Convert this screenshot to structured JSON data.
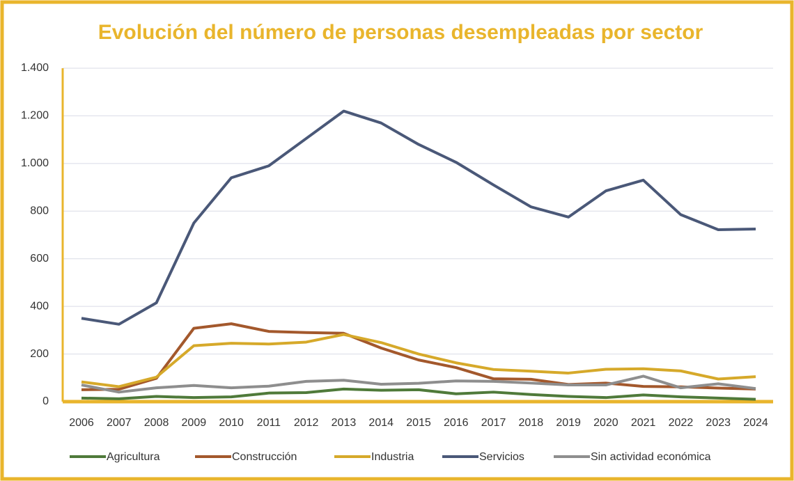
{
  "chart_data": {
    "type": "line",
    "title": "Evolución del número de personas desempleadas por sector",
    "categories": [
      "2006",
      "2007",
      "2008",
      "2009",
      "2010",
      "2011",
      "2012",
      "2013",
      "2014",
      "2015",
      "2016",
      "2017",
      "2018",
      "2019",
      "2020",
      "2021",
      "2022",
      "2023",
      "2024"
    ],
    "series": [
      {
        "name": "Agricultura",
        "color": "#4f7a3a",
        "values": [
          15,
          12,
          22,
          17,
          20,
          36,
          38,
          53,
          48,
          50,
          33,
          40,
          30,
          22,
          17,
          28,
          20,
          15,
          10
        ]
      },
      {
        "name": "Construcción",
        "color": "#a3582c",
        "values": [
          50,
          52,
          98,
          308,
          327,
          295,
          290,
          287,
          225,
          175,
          143,
          96,
          94,
          72,
          78,
          64,
          62,
          57,
          53
        ]
      },
      {
        "name": "Industria",
        "color": "#d6a92a",
        "values": [
          83,
          63,
          103,
          235,
          245,
          242,
          250,
          282,
          248,
          200,
          163,
          135,
          128,
          120,
          136,
          138,
          129,
          95,
          105
        ]
      },
      {
        "name": "Servicios",
        "color": "#4a5878",
        "values": [
          350,
          325,
          415,
          750,
          940,
          990,
          1105,
          1220,
          1170,
          1080,
          1005,
          910,
          818,
          775,
          885,
          930,
          785,
          722,
          725
        ]
      },
      {
        "name": "Sin actividad económica",
        "color": "#8e8e8e",
        "values": [
          70,
          40,
          58,
          68,
          58,
          65,
          85,
          90,
          73,
          77,
          87,
          85,
          78,
          70,
          70,
          107,
          58,
          75,
          55
        ]
      }
    ],
    "ylim": [
      0,
      1400
    ],
    "yticks": [
      0,
      200,
      400,
      600,
      800,
      {
        "value": 1000,
        "label": "1.000"
      },
      {
        "value": 1200,
        "label": "1.200"
      },
      {
        "value": 1400,
        "label": "1.400"
      }
    ],
    "grid": true,
    "legend": "bottom"
  }
}
